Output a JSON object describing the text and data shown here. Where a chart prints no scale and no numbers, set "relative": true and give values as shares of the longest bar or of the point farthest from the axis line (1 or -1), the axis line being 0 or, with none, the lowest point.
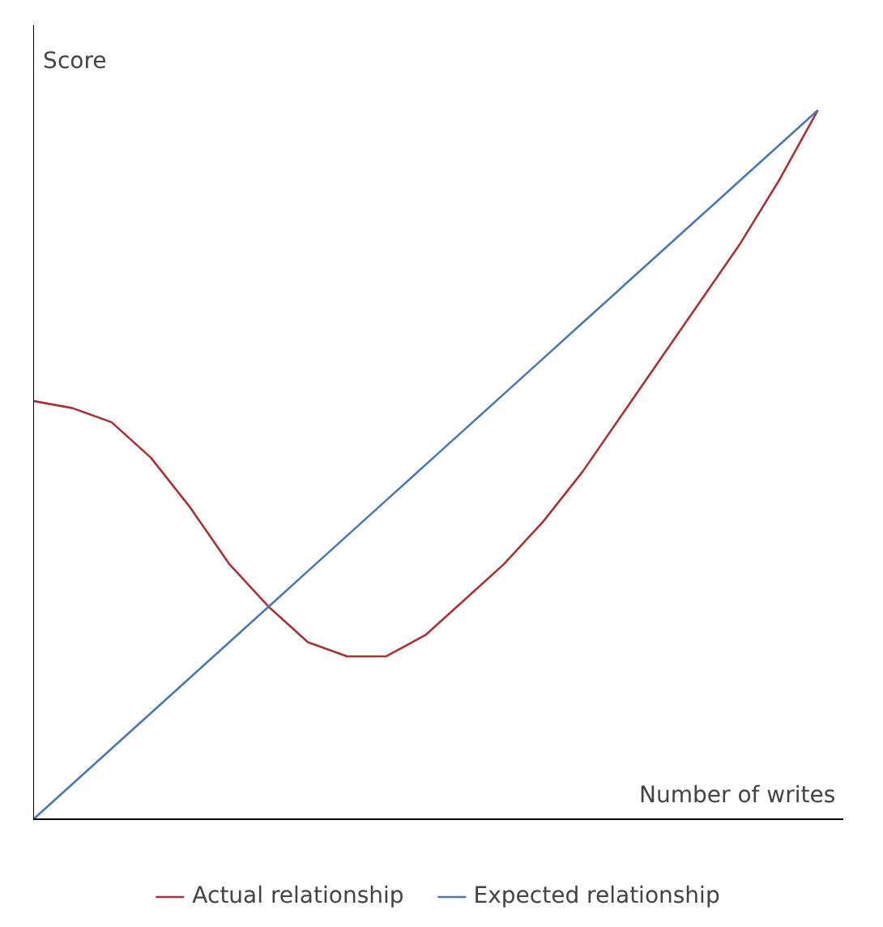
{
  "chart_data": {
    "type": "line",
    "relative": true,
    "xlabel": "Number of writes",
    "ylabel": "Score",
    "categories": [
      null,
      null,
      null,
      null,
      null,
      null,
      null,
      null,
      null,
      null,
      null,
      null,
      null,
      null,
      null,
      null,
      null,
      null,
      null,
      null,
      null
    ],
    "series": [
      {
        "name": "Actual relationship",
        "color": "#a83236",
        "values": [
          0.59,
          0.58,
          0.56,
          0.51,
          0.44,
          0.36,
          0.3,
          0.25,
          0.23,
          0.23,
          0.26,
          0.31,
          0.36,
          0.42,
          0.49,
          0.57,
          0.65,
          0.73,
          0.81,
          0.9,
          1.0
        ]
      },
      {
        "name": "Expected relationship",
        "color": "#4a78b0",
        "values": [
          0,
          0.05,
          0.1,
          0.15,
          0.2,
          0.25,
          0.3,
          0.35,
          0.4,
          0.45,
          0.5,
          0.55,
          0.6,
          0.65,
          0.7,
          0.75,
          0.8,
          0.85,
          0.9,
          0.95,
          1.0
        ]
      }
    ],
    "legend": "bottom",
    "grid": false,
    "marker": "none",
    "line_style": "solid"
  }
}
